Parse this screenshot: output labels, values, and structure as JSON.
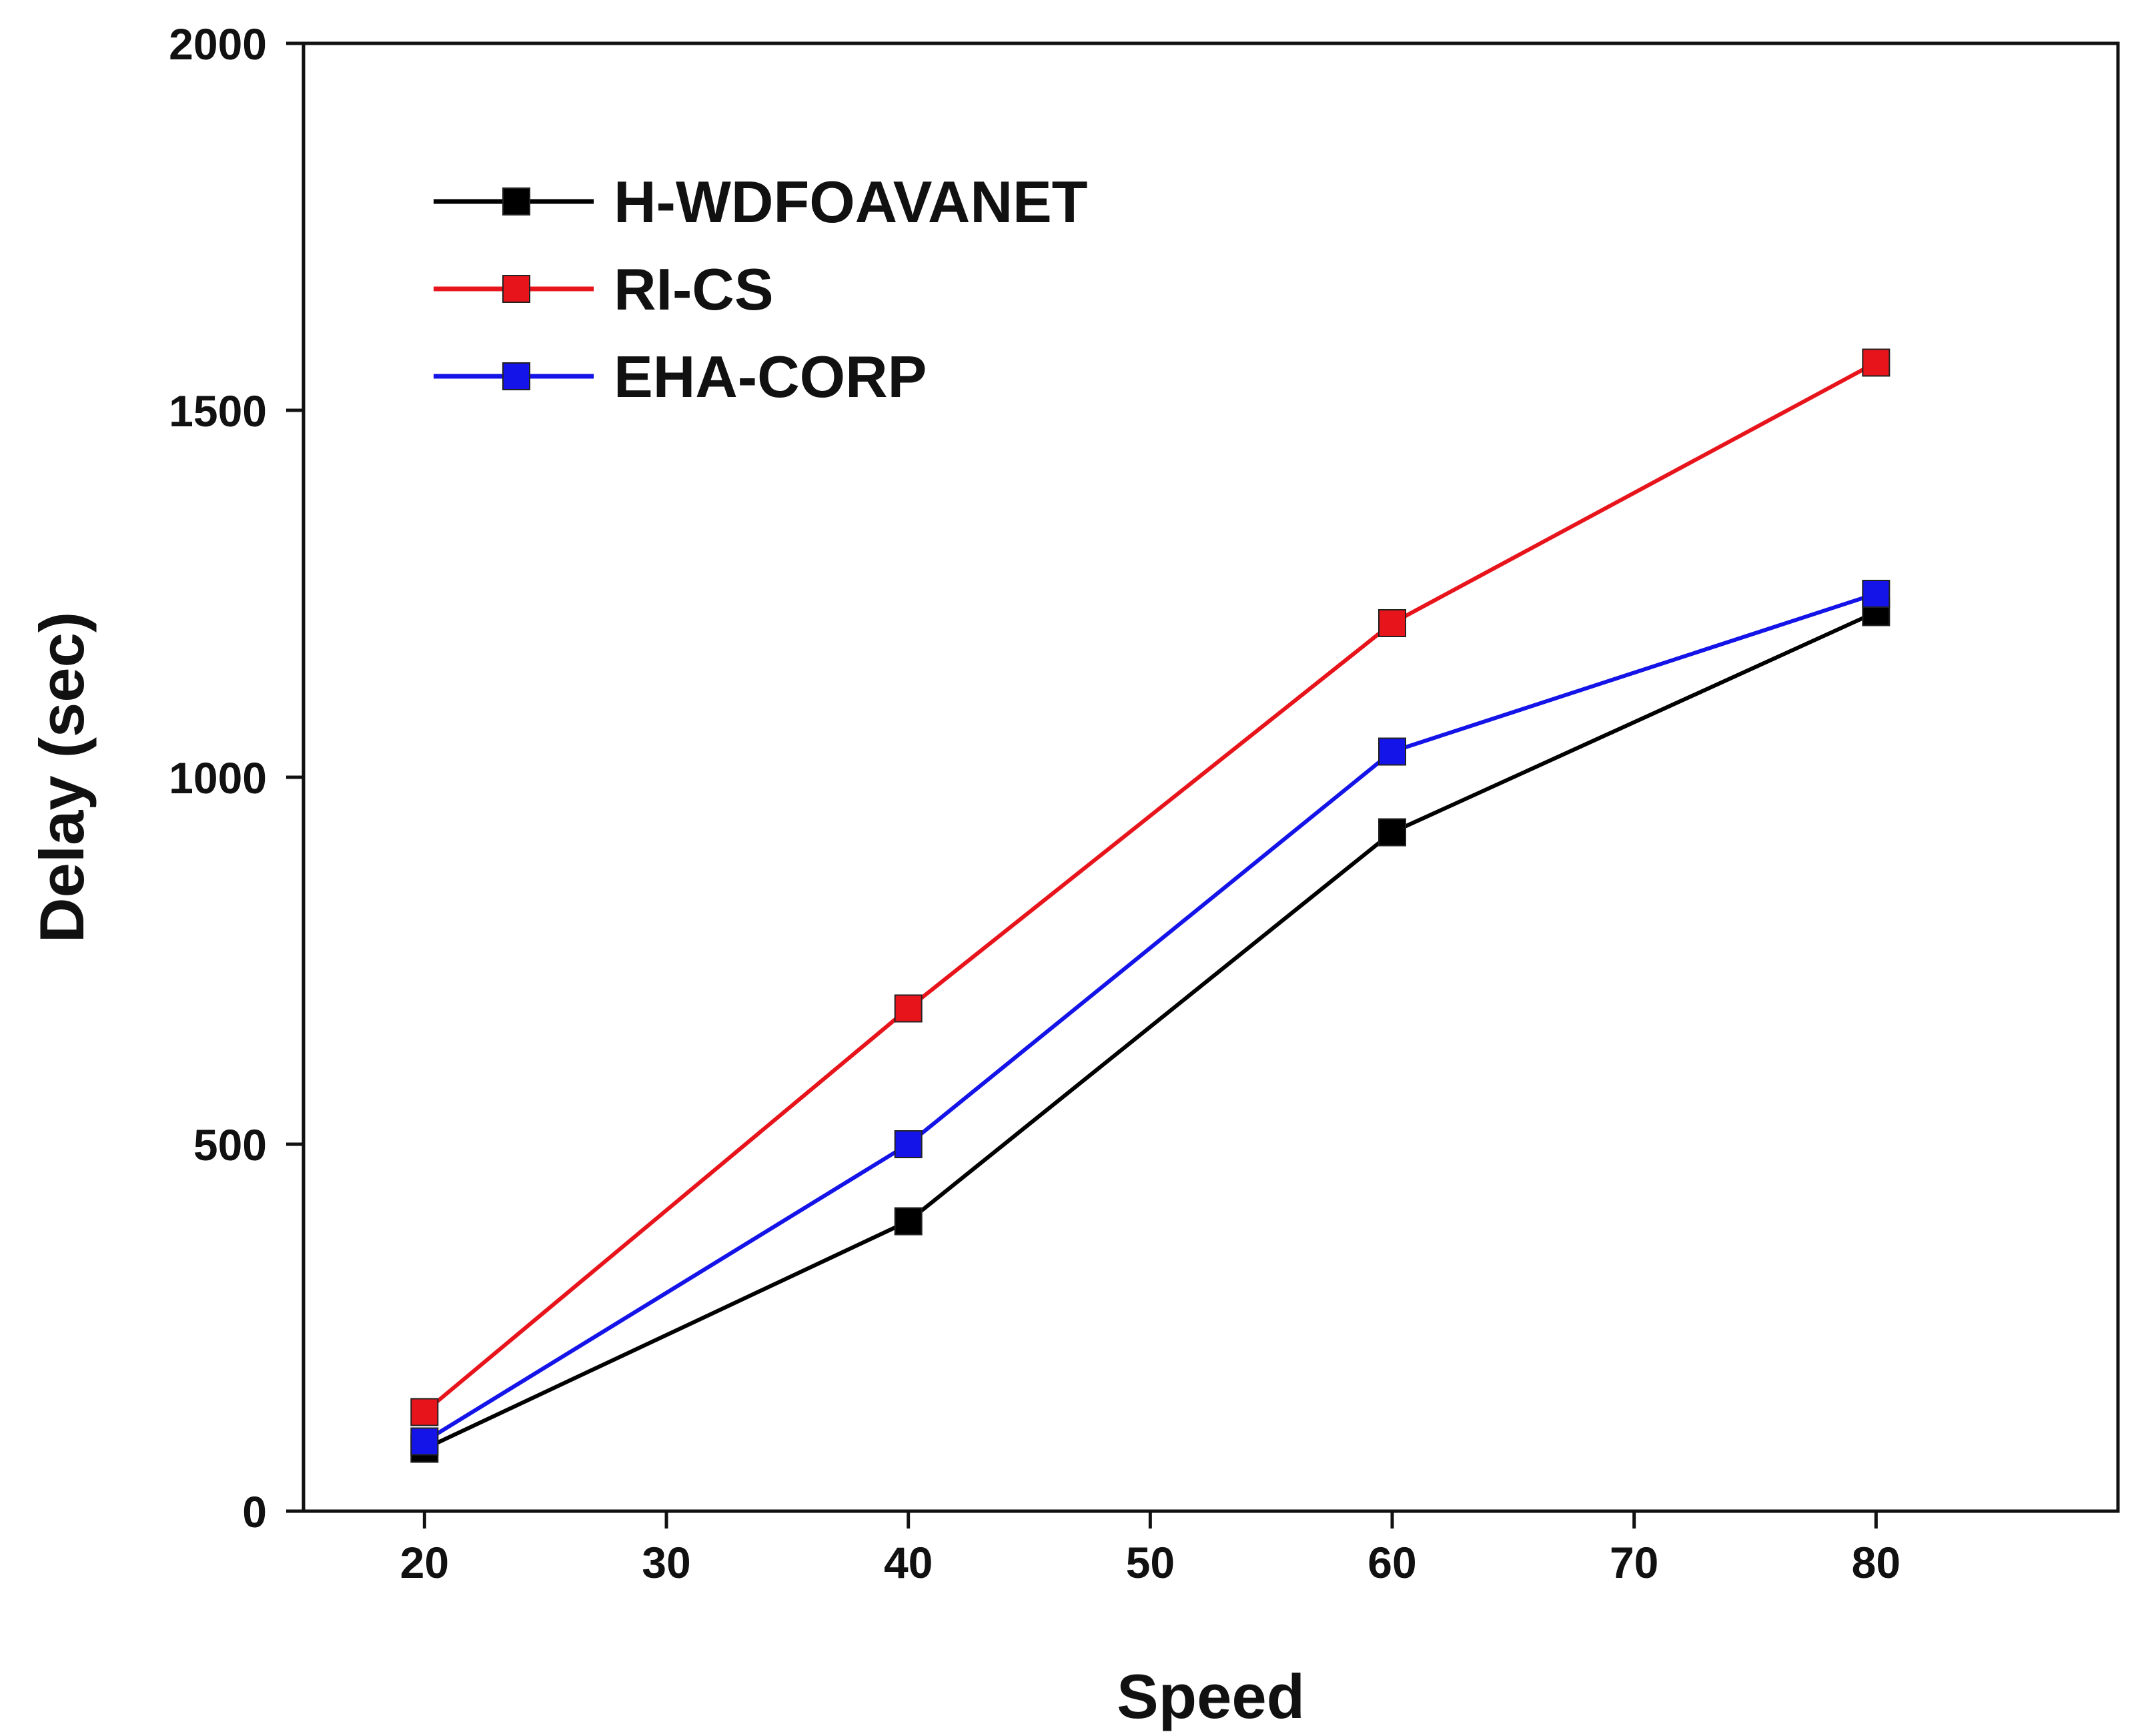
{
  "chart_data": {
    "type": "line",
    "title": "",
    "xlabel": "Speed",
    "ylabel": "Delay (sec)",
    "x": [
      20,
      40,
      60,
      80
    ],
    "xlim": [
      15,
      90
    ],
    "ylim": [
      0,
      2000
    ],
    "xticks": [
      "20",
      "30",
      "40",
      "50",
      "60",
      "70",
      "80"
    ],
    "yticks": [
      "0",
      "500",
      "1000",
      "1500",
      "2000"
    ],
    "grid": false,
    "legend_position": "top-left",
    "series": [
      {
        "name": "H-WDFOAVANET",
        "color": "#000000",
        "marker": "square",
        "values": [
          85,
          395,
          925,
          1225
        ]
      },
      {
        "name": "RI-CS",
        "color": "#e8141b",
        "marker": "square",
        "values": [
          135,
          685,
          1210,
          1565
        ]
      },
      {
        "name": "EHA-CORP",
        "color": "#1414e8",
        "marker": "square",
        "values": [
          95,
          500,
          1035,
          1250
        ]
      }
    ]
  }
}
